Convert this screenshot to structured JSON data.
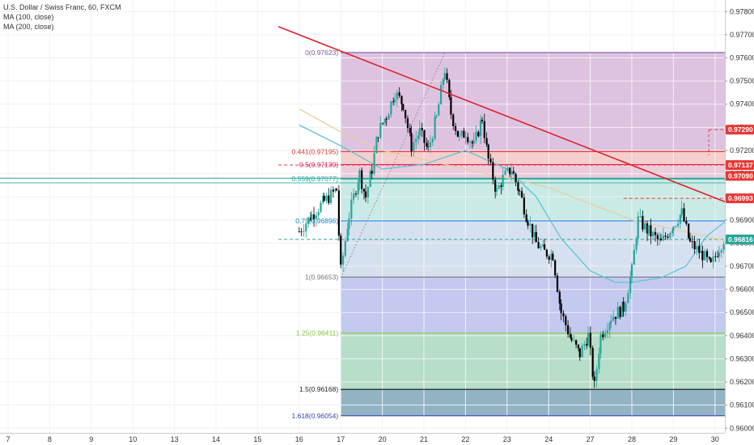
{
  "header": {
    "symbol_line": "U.S. Dollar / Swiss Franc, 60, FXCM",
    "ma100_label": "MA (100, close)",
    "ma200_label": "MA (200, close)"
  },
  "colors": {
    "up": "#26a69a",
    "down": "#000000",
    "trendline": "#e0202c",
    "ma100": "#5fc3d9",
    "ma200": "#e8cf9a"
  },
  "chart_data": {
    "type": "candlestick",
    "title": "U.S. Dollar / Swiss Franc, 60, FXCM",
    "ylim": [
      0.9598,
      0.9785
    ],
    "y_ticks": [
      "0.97800",
      "0.97700",
      "0.97600",
      "0.97500",
      "0.97400",
      "0.97300",
      "0.97200",
      "0.97100",
      "0.97000",
      "0.96900",
      "0.96800",
      "0.96700",
      "0.96600",
      "0.96500",
      "0.96400",
      "0.96300",
      "0.96200",
      "0.96100",
      "0.96000"
    ],
    "x_ticks": [
      "7",
      "8",
      "9",
      "10",
      "13",
      "14",
      "15",
      "16",
      "17",
      "20",
      "21",
      "22",
      "23",
      "24",
      "27",
      "28",
      "29",
      "30"
    ],
    "fib_levels": [
      {
        "label": "0(0.97623)",
        "price": 0.97623,
        "color": "#7e57a8"
      },
      {
        "label": "0.441(0.97195)",
        "price": 0.97195,
        "color": "#e53935"
      },
      {
        "label": "0.5(0.97139)",
        "price": 0.97139,
        "color": "#d81b60"
      },
      {
        "label": "0.559(0.97077)",
        "price": 0.97077,
        "color": "#26a69a"
      },
      {
        "label": "0.75(0.96896)",
        "price": 0.96896,
        "color": "#1e88e5"
      },
      {
        "label": "1(0.96653)",
        "price": 0.96653,
        "color": "#777777"
      },
      {
        "label": "1.25(0.96411)",
        "price": 0.96411,
        "color": "#8bc34a"
      },
      {
        "label": "1.5(0.96168)",
        "price": 0.96168,
        "color": "#222222"
      },
      {
        "label": "1.618(0.96054)",
        "price": 0.96054,
        "color": "#3949ab"
      }
    ],
    "price_tags": [
      {
        "text": "0.97290",
        "price": 0.9729,
        "color": "#e53935"
      },
      {
        "text": "0.97137",
        "price": 0.97137,
        "color": "#e53935"
      },
      {
        "text": "0.97090",
        "price": 0.9709,
        "color": "#e53935"
      },
      {
        "text": "0.96993",
        "price": 0.96993,
        "color": "#e53935"
      },
      {
        "text": "0.96816",
        "price": 0.96816,
        "color": "#26a69a"
      }
    ],
    "price_path": [
      [
        7.0,
        0.9685
      ],
      [
        7.3,
        0.9692
      ],
      [
        7.6,
        0.9698
      ],
      [
        7.9,
        0.9703
      ],
      [
        8.0,
        0.9668
      ],
      [
        8.2,
        0.9692
      ],
      [
        8.45,
        0.971
      ],
      [
        8.6,
        0.97
      ],
      [
        8.75,
        0.9712
      ],
      [
        8.9,
        0.9728
      ],
      [
        9.1,
        0.9735
      ],
      [
        9.3,
        0.9745
      ],
      [
        9.5,
        0.974
      ],
      [
        9.7,
        0.9722
      ],
      [
        9.9,
        0.9728
      ],
      [
        10.1,
        0.972
      ],
      [
        10.3,
        0.9734
      ],
      [
        10.5,
        0.9755
      ],
      [
        10.65,
        0.9736
      ],
      [
        10.85,
        0.9725
      ],
      [
        11.0,
        0.9728
      ],
      [
        11.2,
        0.9722
      ],
      [
        11.4,
        0.9734
      ],
      [
        11.55,
        0.9716
      ],
      [
        11.75,
        0.9702
      ],
      [
        11.9,
        0.9708
      ],
      [
        12.1,
        0.9712
      ],
      [
        12.3,
        0.9702
      ],
      [
        12.5,
        0.969
      ],
      [
        12.7,
        0.968
      ],
      [
        12.9,
        0.9676
      ],
      [
        13.1,
        0.9675
      ],
      [
        13.3,
        0.965
      ],
      [
        13.55,
        0.9638
      ],
      [
        13.75,
        0.9632
      ],
      [
        13.95,
        0.964
      ],
      [
        14.1,
        0.9618
      ],
      [
        14.25,
        0.964
      ],
      [
        14.5,
        0.9648
      ],
      [
        14.8,
        0.9652
      ],
      [
        15.0,
        0.9668
      ],
      [
        15.15,
        0.969
      ],
      [
        15.4,
        0.9685
      ],
      [
        15.7,
        0.968
      ],
      [
        16.0,
        0.9688
      ],
      [
        16.2,
        0.9693
      ],
      [
        16.4,
        0.968
      ],
      [
        16.7,
        0.9675
      ],
      [
        16.9,
        0.967
      ],
      [
        17.1,
        0.9678
      ],
      [
        17.3,
        0.9685
      ],
      [
        17.5,
        0.97
      ],
      [
        17.65,
        0.9722
      ],
      [
        17.8,
        0.9708
      ],
      [
        17.95,
        0.9698
      ],
      [
        18.1,
        0.9695
      ],
      [
        18.3,
        0.969
      ],
      [
        18.55,
        0.9678
      ],
      [
        18.75,
        0.9675
      ],
      [
        18.95,
        0.9686
      ],
      [
        19.1,
        0.9682
      ],
      [
        19.25,
        0.9676
      ],
      [
        19.4,
        0.9678
      ],
      [
        19.6,
        0.968
      ],
      [
        19.8,
        0.9688
      ],
      [
        20.0,
        0.9692
      ],
      [
        20.15,
        0.97
      ],
      [
        20.35,
        0.9706
      ],
      [
        20.55,
        0.9702
      ],
      [
        20.7,
        0.9714
      ],
      [
        20.85,
        0.9708
      ],
      [
        21.0,
        0.9704
      ],
      [
        21.1,
        0.971
      ],
      [
        21.25,
        0.9706
      ]
    ],
    "ma100_path": [
      [
        7.0,
        0.9731
      ],
      [
        8.0,
        0.9722
      ],
      [
        9.0,
        0.9712
      ],
      [
        10.0,
        0.9714
      ],
      [
        11.0,
        0.972
      ],
      [
        12.0,
        0.9712
      ],
      [
        12.7,
        0.97
      ],
      [
        13.3,
        0.9682
      ],
      [
        14.0,
        0.9668
      ],
      [
        14.6,
        0.9663
      ],
      [
        15.0,
        0.9663
      ],
      [
        15.7,
        0.9665
      ],
      [
        16.3,
        0.967
      ],
      [
        16.8,
        0.9683
      ],
      [
        17.3,
        0.969
      ],
      [
        18.0,
        0.9686
      ],
      [
        18.6,
        0.9684
      ],
      [
        19.0,
        0.9683
      ],
      [
        19.5,
        0.9685
      ],
      [
        20.0,
        0.9688
      ],
      [
        20.6,
        0.9692
      ],
      [
        21.0,
        0.9694
      ]
    ],
    "ma200_path": [
      [
        7.0,
        0.9738
      ],
      [
        8.0,
        0.9728
      ],
      [
        9.0,
        0.972
      ],
      [
        10.0,
        0.9716
      ],
      [
        11.0,
        0.9712
      ],
      [
        12.0,
        0.9708
      ],
      [
        13.0,
        0.9704
      ],
      [
        14.0,
        0.9697
      ],
      [
        15.0,
        0.969
      ],
      [
        16.0,
        0.9686
      ],
      [
        17.0,
        0.9682
      ],
      [
        18.0,
        0.9678
      ],
      [
        18.6,
        0.9676
      ],
      [
        19.0,
        0.9676
      ]
    ],
    "trendline": [
      [
        6.5,
        0.97735
      ],
      [
        24.0,
        0.96502
      ]
    ],
    "channel_upper": [
      [
        18.9,
        0.97007
      ],
      [
        20.1,
        0.97223
      ]
    ],
    "channel_lower": [
      [
        18.9,
        0.96824
      ],
      [
        20.55,
        0.97125
      ]
    ],
    "dashed_boxes": [
      {
        "x0": 16.85,
        "x1": 21.25,
        "price": 0.9729
      },
      {
        "x0": 14.8,
        "x1": 21.25,
        "price": 0.96993
      },
      {
        "x0": 6.5,
        "x1": 21.25,
        "price": 0.96816
      },
      {
        "x0": 6.5,
        "x1": 21.25,
        "price": 0.97137
      }
    ],
    "events": [
      {
        "x": 19.7,
        "label": "2 3"
      },
      {
        "x": 20.6,
        "label": "8"
      },
      {
        "x": 21.2,
        "label": "8"
      },
      {
        "x": 22.6,
        "label": "5 4 2"
      }
    ],
    "grid": true,
    "fib_x_start": 8.0
  }
}
